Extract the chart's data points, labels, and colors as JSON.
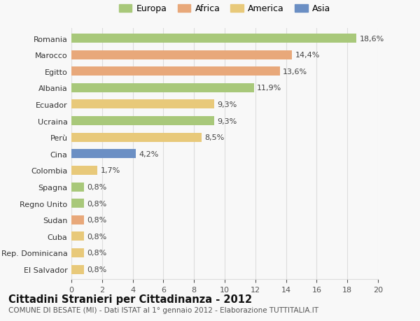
{
  "categories": [
    "El Salvador",
    "Rep. Dominicana",
    "Cuba",
    "Sudan",
    "Regno Unito",
    "Spagna",
    "Colombia",
    "Cina",
    "Perù",
    "Ucraina",
    "Ecuador",
    "Albania",
    "Egitto",
    "Marocco",
    "Romania"
  ],
  "values": [
    0.8,
    0.8,
    0.8,
    0.8,
    0.8,
    0.8,
    1.7,
    4.2,
    8.5,
    9.3,
    9.3,
    11.9,
    13.6,
    14.4,
    18.6
  ],
  "labels": [
    "0,8%",
    "0,8%",
    "0,8%",
    "0,8%",
    "0,8%",
    "0,8%",
    "1,7%",
    "4,2%",
    "8,5%",
    "9,3%",
    "9,3%",
    "11,9%",
    "13,6%",
    "14,4%",
    "18,6%"
  ],
  "colors": [
    "#e8c97a",
    "#e8c97a",
    "#e8c97a",
    "#e8a87a",
    "#a8c87a",
    "#a8c87a",
    "#e8c97a",
    "#6b8fc4",
    "#e8c97a",
    "#a8c87a",
    "#e8c97a",
    "#a8c87a",
    "#e8a87a",
    "#e8a87a",
    "#a8c87a"
  ],
  "legend_labels": [
    "Europa",
    "Africa",
    "America",
    "Asia"
  ],
  "legend_colors": [
    "#a8c87a",
    "#e8a87a",
    "#e8c97a",
    "#6b8fc4"
  ],
  "title": "Cittadini Stranieri per Cittadinanza - 2012",
  "subtitle": "COMUNE DI BESATE (MI) - Dati ISTAT al 1° gennaio 2012 - Elaborazione TUTTITALIA.IT",
  "xlim": [
    0,
    20
  ],
  "xticks": [
    0,
    2,
    4,
    6,
    8,
    10,
    12,
    14,
    16,
    18,
    20
  ],
  "background_color": "#f8f8f8",
  "grid_color": "#dddddd",
  "title_fontsize": 10.5,
  "subtitle_fontsize": 7.5,
  "label_fontsize": 8,
  "tick_fontsize": 8,
  "bar_height": 0.55
}
